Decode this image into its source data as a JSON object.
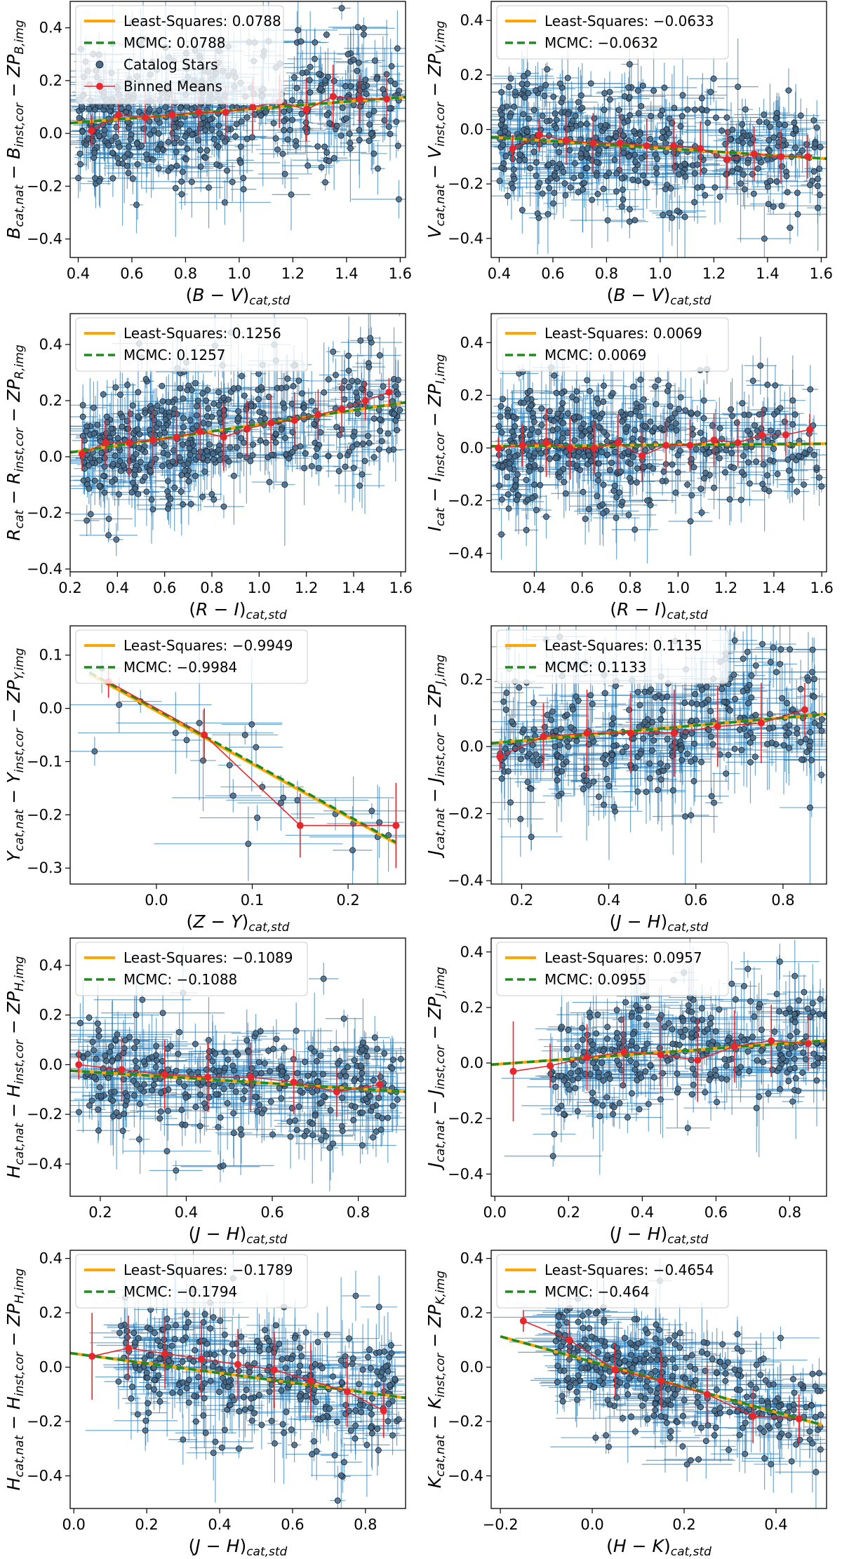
{
  "figure": {
    "colors": {
      "catalog_stars": "#4a6a86",
      "error_bars": "#1f77b4",
      "binned_means": "#e8262c",
      "least_squares": "#ffa500",
      "mcmc": "#1f8a1f"
    },
    "legend_labels": {
      "least_squares": "Least-Squares",
      "mcmc": "MCMC",
      "catalog": "Catalog Stars",
      "binned": "Binned Means"
    }
  },
  "chart_data": [
    {
      "type": "scatter",
      "id": "B",
      "xlabel": "(B − V)_cat,std",
      "ylabel": "B_cat,nat − B_inst,cor − ZP_B,img",
      "xlim": [
        0.37,
        1.62
      ],
      "ylim": [
        -0.47,
        0.5
      ],
      "xticks": [
        0.4,
        0.6,
        0.8,
        1.0,
        1.2,
        1.4,
        1.6
      ],
      "xtick_labels": [
        "0.4",
        "0.6",
        "0.8",
        "1.0",
        "1.2",
        "1.4",
        "1.6"
      ],
      "yticks": [
        -0.4,
        -0.2,
        0.0,
        0.2,
        0.4
      ],
      "ytick_labels": [
        "−0.4",
        "−0.2",
        "0.0",
        "0.2",
        "0.4"
      ],
      "least_squares": {
        "label": "Least-Squares: 0.0788",
        "slope": 0.0788,
        "intercept": 0.01,
        "x_range": [
          0.37,
          1.62
        ]
      },
      "mcmc": {
        "label": "MCMC: 0.0788",
        "slope": 0.0788,
        "intercept": 0.01
      },
      "binned_means": {
        "x": [
          0.45,
          0.55,
          0.65,
          0.75,
          0.85,
          0.95,
          1.05,
          1.15,
          1.25,
          1.35,
          1.45,
          1.55
        ],
        "y": [
          0.01,
          0.07,
          0.06,
          0.07,
          0.08,
          0.08,
          0.1,
          0.12,
          0.09,
          0.14,
          0.13,
          0.13
        ],
        "err": [
          0.06,
          0.07,
          0.1,
          0.1,
          0.1,
          0.1,
          0.11,
          0.1,
          0.12,
          0.12,
          0.09,
          0.1
        ]
      },
      "scatter": {
        "count": 460,
        "x_range": [
          0.4,
          1.6
        ],
        "spread": 0.13,
        "x_err": 0.1,
        "y_err": 0.11,
        "skew": 0.35
      },
      "legend_full": true,
      "legend_position": "upper-left"
    },
    {
      "type": "scatter",
      "id": "V",
      "xlabel": "(B − V)_cat,std",
      "ylabel": "V_cat,nat − V_inst,cor − ZP_V,img",
      "xlim": [
        0.37,
        1.62
      ],
      "ylim": [
        -0.47,
        0.47
      ],
      "xticks": [
        0.4,
        0.6,
        0.8,
        1.0,
        1.2,
        1.4,
        1.6
      ],
      "xtick_labels": [
        "0.4",
        "0.6",
        "0.8",
        "1.0",
        "1.2",
        "1.4",
        "1.6"
      ],
      "yticks": [
        -0.4,
        -0.2,
        0.0,
        0.2,
        0.4
      ],
      "ytick_labels": [
        "−0.4",
        "−0.2",
        "0.0",
        "0.2",
        "0.4"
      ],
      "least_squares": {
        "label": "Least-Squares: −0.0633",
        "slope": -0.0633,
        "intercept": -0.005,
        "x_range": [
          0.37,
          1.62
        ]
      },
      "mcmc": {
        "label": "MCMC: −0.0632",
        "slope": -0.0632,
        "intercept": -0.005
      },
      "binned_means": {
        "x": [
          0.45,
          0.55,
          0.65,
          0.75,
          0.85,
          0.95,
          1.05,
          1.15,
          1.25,
          1.35,
          1.45,
          1.55
        ],
        "y": [
          -0.07,
          -0.02,
          -0.04,
          -0.05,
          -0.05,
          -0.06,
          -0.06,
          -0.07,
          -0.11,
          -0.09,
          -0.1,
          -0.1
        ],
        "err": [
          0.05,
          0.06,
          0.09,
          0.11,
          0.11,
          0.1,
          0.1,
          0.1,
          0.11,
          0.1,
          0.1,
          0.08
        ]
      },
      "scatter": {
        "count": 440,
        "x_range": [
          0.4,
          1.6
        ],
        "spread": 0.12,
        "x_err": 0.1,
        "y_err": 0.1,
        "skew": 0.35
      },
      "legend_full": false,
      "legend_position": "upper-left"
    },
    {
      "type": "scatter",
      "id": "R",
      "xlabel": "(R − I)_cat,std",
      "ylabel": "R_cat − R_inst,cor − ZP_R,img",
      "xlim": [
        0.2,
        1.62
      ],
      "ylim": [
        -0.41,
        0.51
      ],
      "xticks": [
        0.2,
        0.4,
        0.6,
        0.8,
        1.0,
        1.2,
        1.4,
        1.6
      ],
      "xtick_labels": [
        "0.2",
        "0.4",
        "0.6",
        "0.8",
        "1.0",
        "1.2",
        "1.4",
        "1.6"
      ],
      "yticks": [
        -0.4,
        -0.2,
        0.0,
        0.2,
        0.4
      ],
      "ytick_labels": [
        "−0.4",
        "−0.2",
        "0.0",
        "0.2",
        "0.4"
      ],
      "least_squares": {
        "label": "Least-Squares: 0.1256",
        "slope": 0.1256,
        "intercept": -0.01,
        "x_range": [
          0.2,
          1.62
        ]
      },
      "mcmc": {
        "label": "MCMC: 0.1257",
        "slope": 0.1257,
        "intercept": -0.01
      },
      "binned_means": {
        "x": [
          0.25,
          0.35,
          0.45,
          0.55,
          0.65,
          0.75,
          0.85,
          0.95,
          1.05,
          1.15,
          1.25,
          1.35,
          1.45,
          1.55
        ],
        "y": [
          0.01,
          0.05,
          0.05,
          0.06,
          0.07,
          0.09,
          0.07,
          0.1,
          0.12,
          0.13,
          0.15,
          0.17,
          0.2,
          0.23
        ],
        "err": [
          0.06,
          0.08,
          0.12,
          0.11,
          0.1,
          0.1,
          0.12,
          0.1,
          0.1,
          0.1,
          0.09,
          0.1,
          0.07,
          0.05
        ]
      },
      "scatter": {
        "count": 470,
        "x_range": [
          0.25,
          1.6
        ],
        "spread": 0.12,
        "x_err": 0.08,
        "y_err": 0.11,
        "skew": 0.3
      },
      "legend_full": false,
      "legend_position": "upper-left"
    },
    {
      "type": "scatter",
      "id": "I",
      "xlabel": "(R − I)_cat,std",
      "ylabel": "I_cat − I_inst,cor − ZP_I,img",
      "xlim": [
        0.22,
        1.62
      ],
      "ylim": [
        -0.47,
        0.51
      ],
      "xticks": [
        0.4,
        0.6,
        0.8,
        1.0,
        1.2,
        1.4,
        1.6
      ],
      "xtick_labels": [
        "0.4",
        "0.6",
        "0.8",
        "1.0",
        "1.2",
        "1.4",
        "1.6"
      ],
      "yticks": [
        -0.4,
        -0.2,
        0.0,
        0.2,
        0.4
      ],
      "ytick_labels": [
        "−0.4",
        "−0.2",
        "0.0",
        "0.2",
        "0.4"
      ],
      "least_squares": {
        "label": "Least-Squares: 0.0069",
        "slope": 0.0069,
        "intercept": 0.005,
        "x_range": [
          0.22,
          1.62
        ]
      },
      "mcmc": {
        "label": "MCMC: 0.0069",
        "slope": 0.0069,
        "intercept": 0.005
      },
      "binned_means": {
        "x": [
          0.25,
          0.35,
          0.45,
          0.55,
          0.65,
          0.75,
          0.85,
          0.95,
          1.05,
          1.15,
          1.25,
          1.35,
          1.45,
          1.55
        ],
        "y": [
          0.0,
          0.01,
          0.02,
          0.0,
          0.0,
          0.02,
          -0.03,
          0.01,
          0.01,
          0.03,
          0.02,
          0.05,
          0.05,
          0.07
        ],
        "err": [
          0.04,
          0.08,
          0.13,
          0.12,
          0.1,
          0.11,
          0.1,
          0.1,
          0.1,
          0.1,
          0.09,
          0.1,
          0.08,
          0.06
        ]
      },
      "scatter": {
        "count": 460,
        "x_range": [
          0.25,
          1.6
        ],
        "spread": 0.12,
        "x_err": 0.08,
        "y_err": 0.11,
        "skew": 0.3
      },
      "legend_full": false,
      "legend_position": "upper-left"
    },
    {
      "type": "scatter",
      "id": "Y",
      "xlabel": "(Z − Y)_cat,std",
      "ylabel": "Y_cat,nat − Y_inst,cor − ZP_Y,img",
      "xlim": [
        -0.09,
        0.26
      ],
      "ylim": [
        -0.33,
        0.155
      ],
      "xticks": [
        0.0,
        0.1,
        0.2
      ],
      "xtick_labels": [
        "0.0",
        "0.1",
        "0.2"
      ],
      "yticks": [
        -0.3,
        -0.2,
        -0.1,
        0.0,
        0.1
      ],
      "ytick_labels": [
        "−0.3",
        "−0.2",
        "−0.1",
        "0.0",
        "0.1"
      ],
      "least_squares": {
        "label": "Least-Squares: −0.9949",
        "slope": -0.9949,
        "intercept": -0.005,
        "x_range": [
          -0.07,
          0.25
        ]
      },
      "mcmc": {
        "label": "MCMC: −0.9984",
        "slope": -0.9984,
        "intercept": -0.002
      },
      "binned_means": {
        "x": [
          -0.05,
          0.05,
          0.15,
          0.25
        ],
        "y": [
          0.05,
          -0.05,
          -0.22,
          -0.22
        ],
        "err": [
          0.03,
          0.05,
          0.06,
          0.08
        ]
      },
      "scatter": {
        "count": 26,
        "x_range": [
          -0.07,
          0.25
        ],
        "spread": 0.06,
        "x_err": 0.06,
        "y_err": 0.07,
        "skew": 0.0
      },
      "legend_full": false,
      "legend_position": "upper-left"
    },
    {
      "type": "scatter",
      "id": "J1",
      "xlabel": "(J − H)_cat,std",
      "ylabel": "J_cat,nat − J_inst,cor − ZP_J,img",
      "xlim": [
        0.13,
        0.9
      ],
      "ylim": [
        -0.41,
        0.36
      ],
      "xticks": [
        0.2,
        0.4,
        0.6,
        0.8
      ],
      "xtick_labels": [
        "0.2",
        "0.4",
        "0.6",
        "0.8"
      ],
      "yticks": [
        -0.4,
        -0.2,
        0.0,
        0.2
      ],
      "ytick_labels": [
        "−0.4",
        "−0.2",
        "0.0",
        "0.2"
      ],
      "least_squares": {
        "label": "Least-Squares: 0.1135",
        "slope": 0.1135,
        "intercept": -0.005,
        "x_range": [
          0.13,
          0.9
        ]
      },
      "mcmc": {
        "label": "MCMC: 0.1133",
        "slope": 0.1133,
        "intercept": -0.005
      },
      "binned_means": {
        "x": [
          0.15,
          0.25,
          0.35,
          0.45,
          0.55,
          0.65,
          0.75,
          0.85
        ],
        "y": [
          -0.03,
          0.03,
          0.04,
          0.04,
          0.04,
          0.06,
          0.07,
          0.11
        ],
        "err": [
          0.04,
          0.1,
          0.13,
          0.12,
          0.13,
          0.12,
          0.12,
          0.08
        ]
      },
      "scatter": {
        "count": 330,
        "x_range": [
          0.15,
          0.89
        ],
        "spread": 0.11,
        "x_err": 0.07,
        "y_err": 0.12,
        "skew": 0.0
      },
      "legend_full": false,
      "legend_position": "upper-left"
    },
    {
      "type": "scatter",
      "id": "H1",
      "xlabel": "(J − H)_cat,std",
      "ylabel": "H_cat,nat − H_inst,cor − ZP_H,img",
      "xlim": [
        0.13,
        0.91
      ],
      "ylim": [
        -0.53,
        0.51
      ],
      "xticks": [
        0.2,
        0.4,
        0.6,
        0.8
      ],
      "xtick_labels": [
        "0.2",
        "0.4",
        "0.6",
        "0.8"
      ],
      "yticks": [
        -0.4,
        -0.2,
        0.0,
        0.2,
        0.4
      ],
      "ytick_labels": [
        "−0.4",
        "−0.2",
        "0.0",
        "0.2",
        "0.4"
      ],
      "least_squares": {
        "label": "Least-Squares: −0.1089",
        "slope": -0.1089,
        "intercept": -0.01,
        "x_range": [
          0.13,
          0.91
        ]
      },
      "mcmc": {
        "label": "MCMC: −0.1088",
        "slope": -0.1088,
        "intercept": -0.01
      },
      "binned_means": {
        "x": [
          0.15,
          0.25,
          0.35,
          0.45,
          0.55,
          0.65,
          0.75,
          0.85
        ],
        "y": [
          0.0,
          -0.02,
          -0.04,
          -0.05,
          -0.05,
          -0.07,
          -0.11,
          -0.08
        ],
        "err": [
          0.06,
          0.13,
          0.14,
          0.14,
          0.14,
          0.13,
          0.1,
          0.05
        ]
      },
      "scatter": {
        "count": 330,
        "x_range": [
          0.15,
          0.9
        ],
        "spread": 0.12,
        "x_err": 0.08,
        "y_err": 0.12,
        "skew": 0.0
      },
      "legend_full": false,
      "legend_position": "upper-left"
    },
    {
      "type": "scatter",
      "id": "J2",
      "xlabel": "(J − H)_cat,std",
      "ylabel": "J_cat,nat − J_inst,cor − ZP_J,img",
      "xlim": [
        -0.01,
        0.9
      ],
      "ylim": [
        -0.48,
        0.45
      ],
      "xticks": [
        0.0,
        0.2,
        0.4,
        0.6,
        0.8
      ],
      "xtick_labels": [
        "0.0",
        "0.2",
        "0.4",
        "0.6",
        "0.8"
      ],
      "yticks": [
        -0.4,
        -0.2,
        0.0,
        0.2,
        0.4
      ],
      "ytick_labels": [
        "−0.4",
        "−0.2",
        "0.0",
        "0.2",
        "0.4"
      ],
      "least_squares": {
        "label": "Least-Squares: 0.0957",
        "slope": 0.0957,
        "intercept": -0.005,
        "x_range": [
          -0.01,
          0.9
        ]
      },
      "mcmc": {
        "label": "MCMC: 0.0955",
        "slope": 0.0955,
        "intercept": -0.005
      },
      "binned_means": {
        "x": [
          0.05,
          0.15,
          0.25,
          0.35,
          0.45,
          0.55,
          0.65,
          0.75,
          0.85
        ],
        "y": [
          -0.03,
          -0.01,
          0.02,
          0.04,
          0.03,
          0.01,
          0.06,
          0.08,
          0.07
        ],
        "err": [
          0.18,
          0.08,
          0.12,
          0.13,
          0.14,
          0.15,
          0.13,
          0.13,
          0.1
        ]
      },
      "scatter": {
        "count": 300,
        "x_range": [
          0.15,
          0.9
        ],
        "spread": 0.12,
        "x_err": 0.08,
        "y_err": 0.12,
        "skew": 0.0
      },
      "legend_full": false,
      "legend_position": "upper-left"
    },
    {
      "type": "scatter",
      "id": "H2",
      "xlabel": "(J − H)_cat,std",
      "ylabel": "H_cat,nat − H_inst,cor − ZP_H,img",
      "xlim": [
        -0.01,
        0.91
      ],
      "ylim": [
        -0.52,
        0.43
      ],
      "xticks": [
        0.0,
        0.2,
        0.4,
        0.6,
        0.8
      ],
      "xtick_labels": [
        "0.0",
        "0.2",
        "0.4",
        "0.6",
        "0.8"
      ],
      "yticks": [
        -0.4,
        -0.2,
        0.0,
        0.2,
        0.4
      ],
      "ytick_labels": [
        "−0.4",
        "−0.2",
        "0.0",
        "0.2",
        "0.4"
      ],
      "least_squares": {
        "label": "Least-Squares: −0.1789",
        "slope": -0.1789,
        "intercept": 0.05,
        "x_range": [
          -0.01,
          0.91
        ]
      },
      "mcmc": {
        "label": "MCMC: −0.1794",
        "slope": -0.1794,
        "intercept": 0.05
      },
      "binned_means": {
        "x": [
          0.05,
          0.15,
          0.25,
          0.35,
          0.45,
          0.55,
          0.65,
          0.75,
          0.85
        ],
        "y": [
          0.04,
          0.07,
          0.05,
          0.03,
          0.01,
          -0.01,
          -0.05,
          -0.09,
          -0.16
        ],
        "err": [
          0.16,
          0.12,
          0.13,
          0.14,
          0.13,
          0.14,
          0.14,
          0.13,
          0.1
        ]
      },
      "scatter": {
        "count": 320,
        "x_range": [
          0.12,
          0.9
        ],
        "spread": 0.13,
        "x_err": 0.08,
        "y_err": 0.12,
        "skew": 0.0
      },
      "legend_full": false,
      "legend_position": "upper-left"
    },
    {
      "type": "scatter",
      "id": "K",
      "xlabel": "(H − K)_cat,std",
      "ylabel": "K_cat,nat − K_inst,cor − ZP_K,img",
      "xlim": [
        -0.22,
        0.51
      ],
      "ylim": [
        -0.52,
        0.43
      ],
      "xticks": [
        -0.2,
        0.0,
        0.2,
        0.4
      ],
      "xtick_labels": [
        "−0.2",
        "0.0",
        "0.2",
        "0.4"
      ],
      "yticks": [
        -0.4,
        -0.2,
        0.0,
        0.2,
        0.4
      ],
      "ytick_labels": [
        "−0.4",
        "−0.2",
        "0.0",
        "0.2",
        "0.4"
      ],
      "least_squares": {
        "label": "Least-Squares: −0.4654",
        "slope": -0.4654,
        "intercept": 0.02,
        "x_range": [
          -0.2,
          0.5
        ]
      },
      "mcmc": {
        "label": "MCMC: −0.464",
        "slope": -0.464,
        "intercept": 0.02
      },
      "binned_means": {
        "x": [
          -0.15,
          -0.05,
          0.05,
          0.15,
          0.25,
          0.35,
          0.45
        ],
        "y": [
          0.17,
          0.1,
          -0.01,
          -0.05,
          -0.1,
          -0.18,
          -0.19
        ],
        "err": [
          0.04,
          0.07,
          0.1,
          0.11,
          0.11,
          0.1,
          0.09
        ]
      },
      "scatter": {
        "count": 340,
        "x_range": [
          -0.08,
          0.5
        ],
        "spread": 0.1,
        "x_err": 0.07,
        "y_err": 0.1,
        "skew": 0.2
      },
      "legend_full": false,
      "legend_position": "upper-left"
    }
  ]
}
